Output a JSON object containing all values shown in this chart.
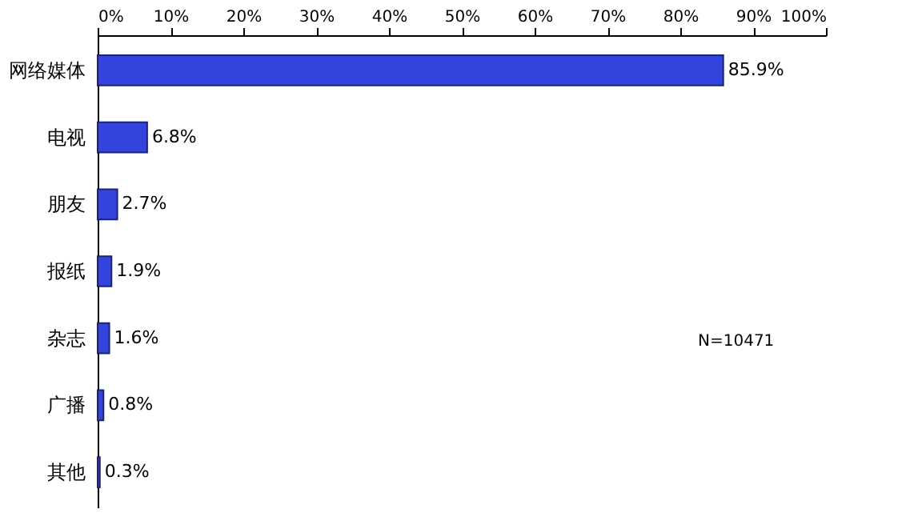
{
  "chart_data": {
    "type": "bar",
    "orientation": "horizontal",
    "categories": [
      "网络媒体",
      "电视",
      "朋友",
      "报纸",
      "杂志",
      "广播",
      "其他"
    ],
    "values": [
      85.9,
      6.8,
      2.7,
      1.9,
      1.6,
      0.8,
      0.3
    ],
    "value_labels": [
      "85.9%",
      "6.8%",
      "2.7%",
      "1.9%",
      "1.6%",
      "0.8%",
      "0.3%"
    ],
    "color": "#3344dd",
    "xlim": [
      0,
      100
    ],
    "xticks": [
      {
        "value": 0,
        "label": "0%"
      },
      {
        "value": 10,
        "label": "10%"
      },
      {
        "value": 20,
        "label": "20%"
      },
      {
        "value": 30,
        "label": "30%"
      },
      {
        "value": 40,
        "label": "40%"
      },
      {
        "value": 50,
        "label": "50%"
      },
      {
        "value": 60,
        "label": "60%"
      },
      {
        "value": 70,
        "label": "70%"
      },
      {
        "value": 80,
        "label": "80%"
      },
      {
        "value": 90,
        "label": "90%"
      },
      {
        "value": 100,
        "label": "100%"
      }
    ],
    "annotations": [
      "N=10471"
    ],
    "grid": false
  }
}
